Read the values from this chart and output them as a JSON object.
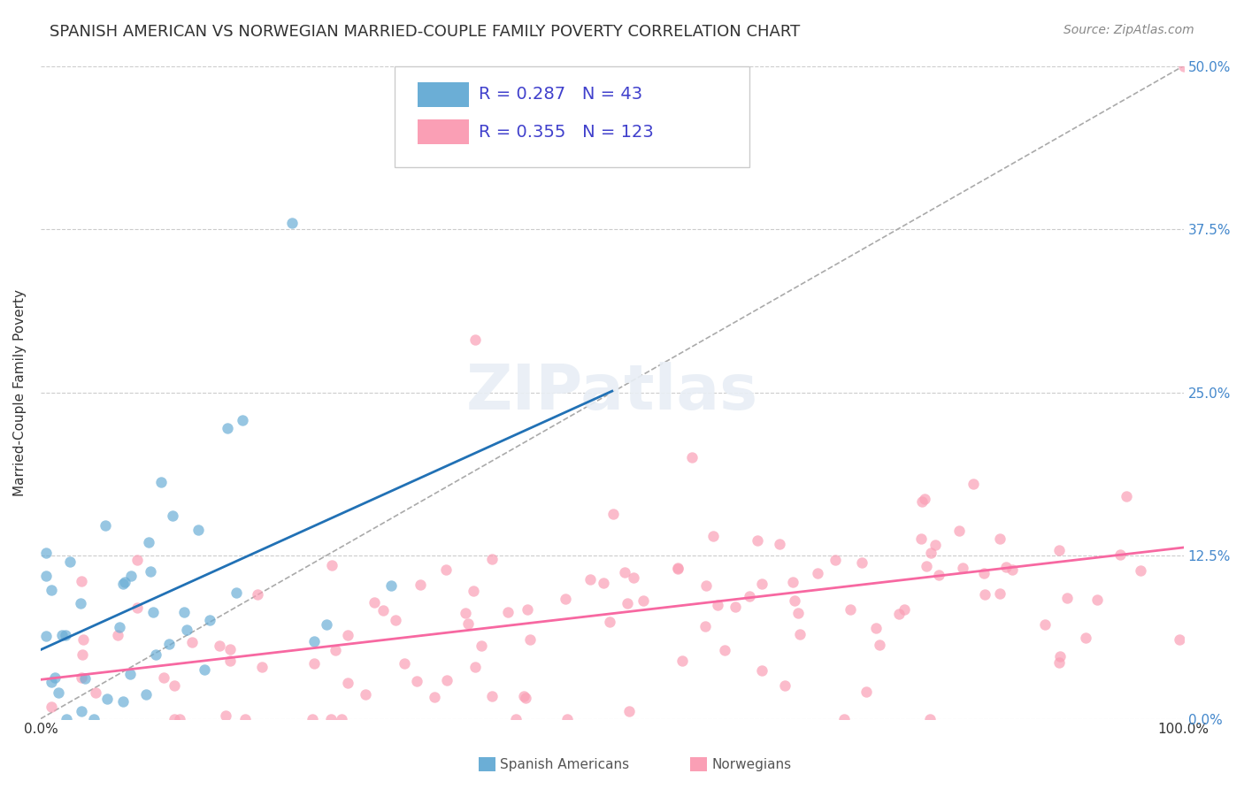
{
  "title": "SPANISH AMERICAN VS NORWEGIAN MARRIED-COUPLE FAMILY POVERTY CORRELATION CHART",
  "source": "Source: ZipAtlas.com",
  "ylabel": "Married-Couple Family Poverty",
  "xlim": [
    0,
    100
  ],
  "ylim": [
    0,
    50
  ],
  "xtick_labels": [
    "0.0%",
    "100.0%"
  ],
  "ytick_labels": [
    "0.0%",
    "12.5%",
    "25.0%",
    "37.5%",
    "50.0%"
  ],
  "ytick_values": [
    0,
    12.5,
    25.0,
    37.5,
    50.0
  ],
  "legend_labels": [
    "Spanish Americans",
    "Norwegians"
  ],
  "legend_r": [
    0.287,
    0.355
  ],
  "legend_n": [
    43,
    123
  ],
  "blue_color": "#6baed6",
  "pink_color": "#fa9fb5",
  "blue_line_color": "#2171b5",
  "pink_line_color": "#f768a1",
  "legend_text_color": "#4040cc",
  "grid_color": "#cccccc",
  "background_color": "#ffffff",
  "right_ytick_color": "#4488cc"
}
